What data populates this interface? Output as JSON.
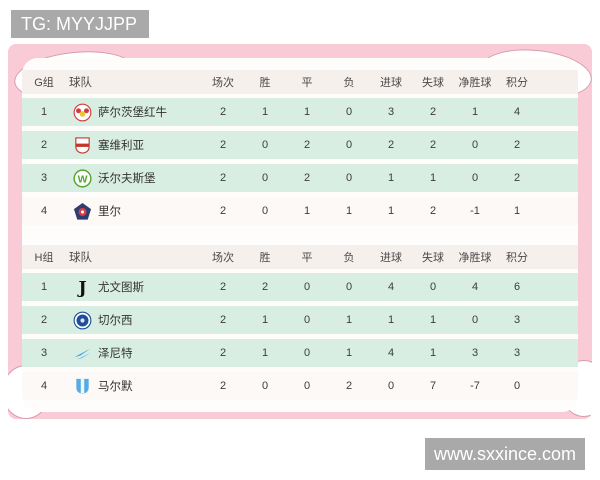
{
  "header_tag": {
    "label": "TG: MYYJJPP"
  },
  "footer_tag": {
    "label": "www.sxxince.com"
  },
  "colors": {
    "pink_bg": "#f9cbd6",
    "mint_row": "#d9eee2",
    "header_row": "#f6f0ed",
    "light_row": "#fcf9f7",
    "tag_bg": "#a9a9a9",
    "arc_stroke": "#d89cab",
    "text": "#3c3c3c"
  },
  "logo_colors": {
    "salzburg": [
      "#d13b40",
      "#f2c232"
    ],
    "sevilla": [
      "#c0392b",
      "#ffffff"
    ],
    "wolfsburg": [
      "#52a62e",
      "#ffffff"
    ],
    "lille": [
      "#2c3e70",
      "#d6404a"
    ],
    "juventus": [
      "#111111",
      "#ffffff"
    ],
    "chelsea": [
      "#1f4e9c",
      "#ffffff"
    ],
    "zenit": [
      "#3aa3dc",
      "#7cc4e8"
    ],
    "malmo": [
      "#56ace0",
      "#ffffff"
    ]
  },
  "table": {
    "team_header": "球队",
    "columns": [
      "场次",
      "胜",
      "平",
      "负",
      "进球",
      "失球",
      "净胜球",
      "积分"
    ],
    "groups": [
      {
        "label": "G组",
        "teams": [
          {
            "rank": "1",
            "name": "萨尔茨堡红牛",
            "logo": "salzburg",
            "stats": [
              "2",
              "1",
              "1",
              "0",
              "3",
              "2",
              "1",
              "4"
            ]
          },
          {
            "rank": "2",
            "name": "塞维利亚",
            "logo": "sevilla",
            "stats": [
              "2",
              "0",
              "2",
              "0",
              "2",
              "2",
              "0",
              "2"
            ]
          },
          {
            "rank": "3",
            "name": "沃尔夫斯堡",
            "logo": "wolfsburg",
            "stats": [
              "2",
              "0",
              "2",
              "0",
              "1",
              "1",
              "0",
              "2"
            ]
          },
          {
            "rank": "4",
            "name": "里尔",
            "logo": "lille",
            "stats": [
              "2",
              "0",
              "1",
              "1",
              "1",
              "2",
              "-1",
              "1"
            ]
          }
        ]
      },
      {
        "label": "H组",
        "teams": [
          {
            "rank": "1",
            "name": "尤文图斯",
            "logo": "juventus",
            "stats": [
              "2",
              "2",
              "0",
              "0",
              "4",
              "0",
              "4",
              "6"
            ]
          },
          {
            "rank": "2",
            "name": "切尔西",
            "logo": "chelsea",
            "stats": [
              "2",
              "1",
              "0",
              "1",
              "1",
              "1",
              "0",
              "3"
            ]
          },
          {
            "rank": "3",
            "name": "泽尼特",
            "logo": "zenit",
            "stats": [
              "2",
              "1",
              "0",
              "1",
              "4",
              "1",
              "3",
              "3"
            ]
          },
          {
            "rank": "4",
            "name": "马尔默",
            "logo": "malmo",
            "stats": [
              "2",
              "0",
              "0",
              "2",
              "0",
              "7",
              "-7",
              "0"
            ]
          }
        ]
      }
    ]
  }
}
